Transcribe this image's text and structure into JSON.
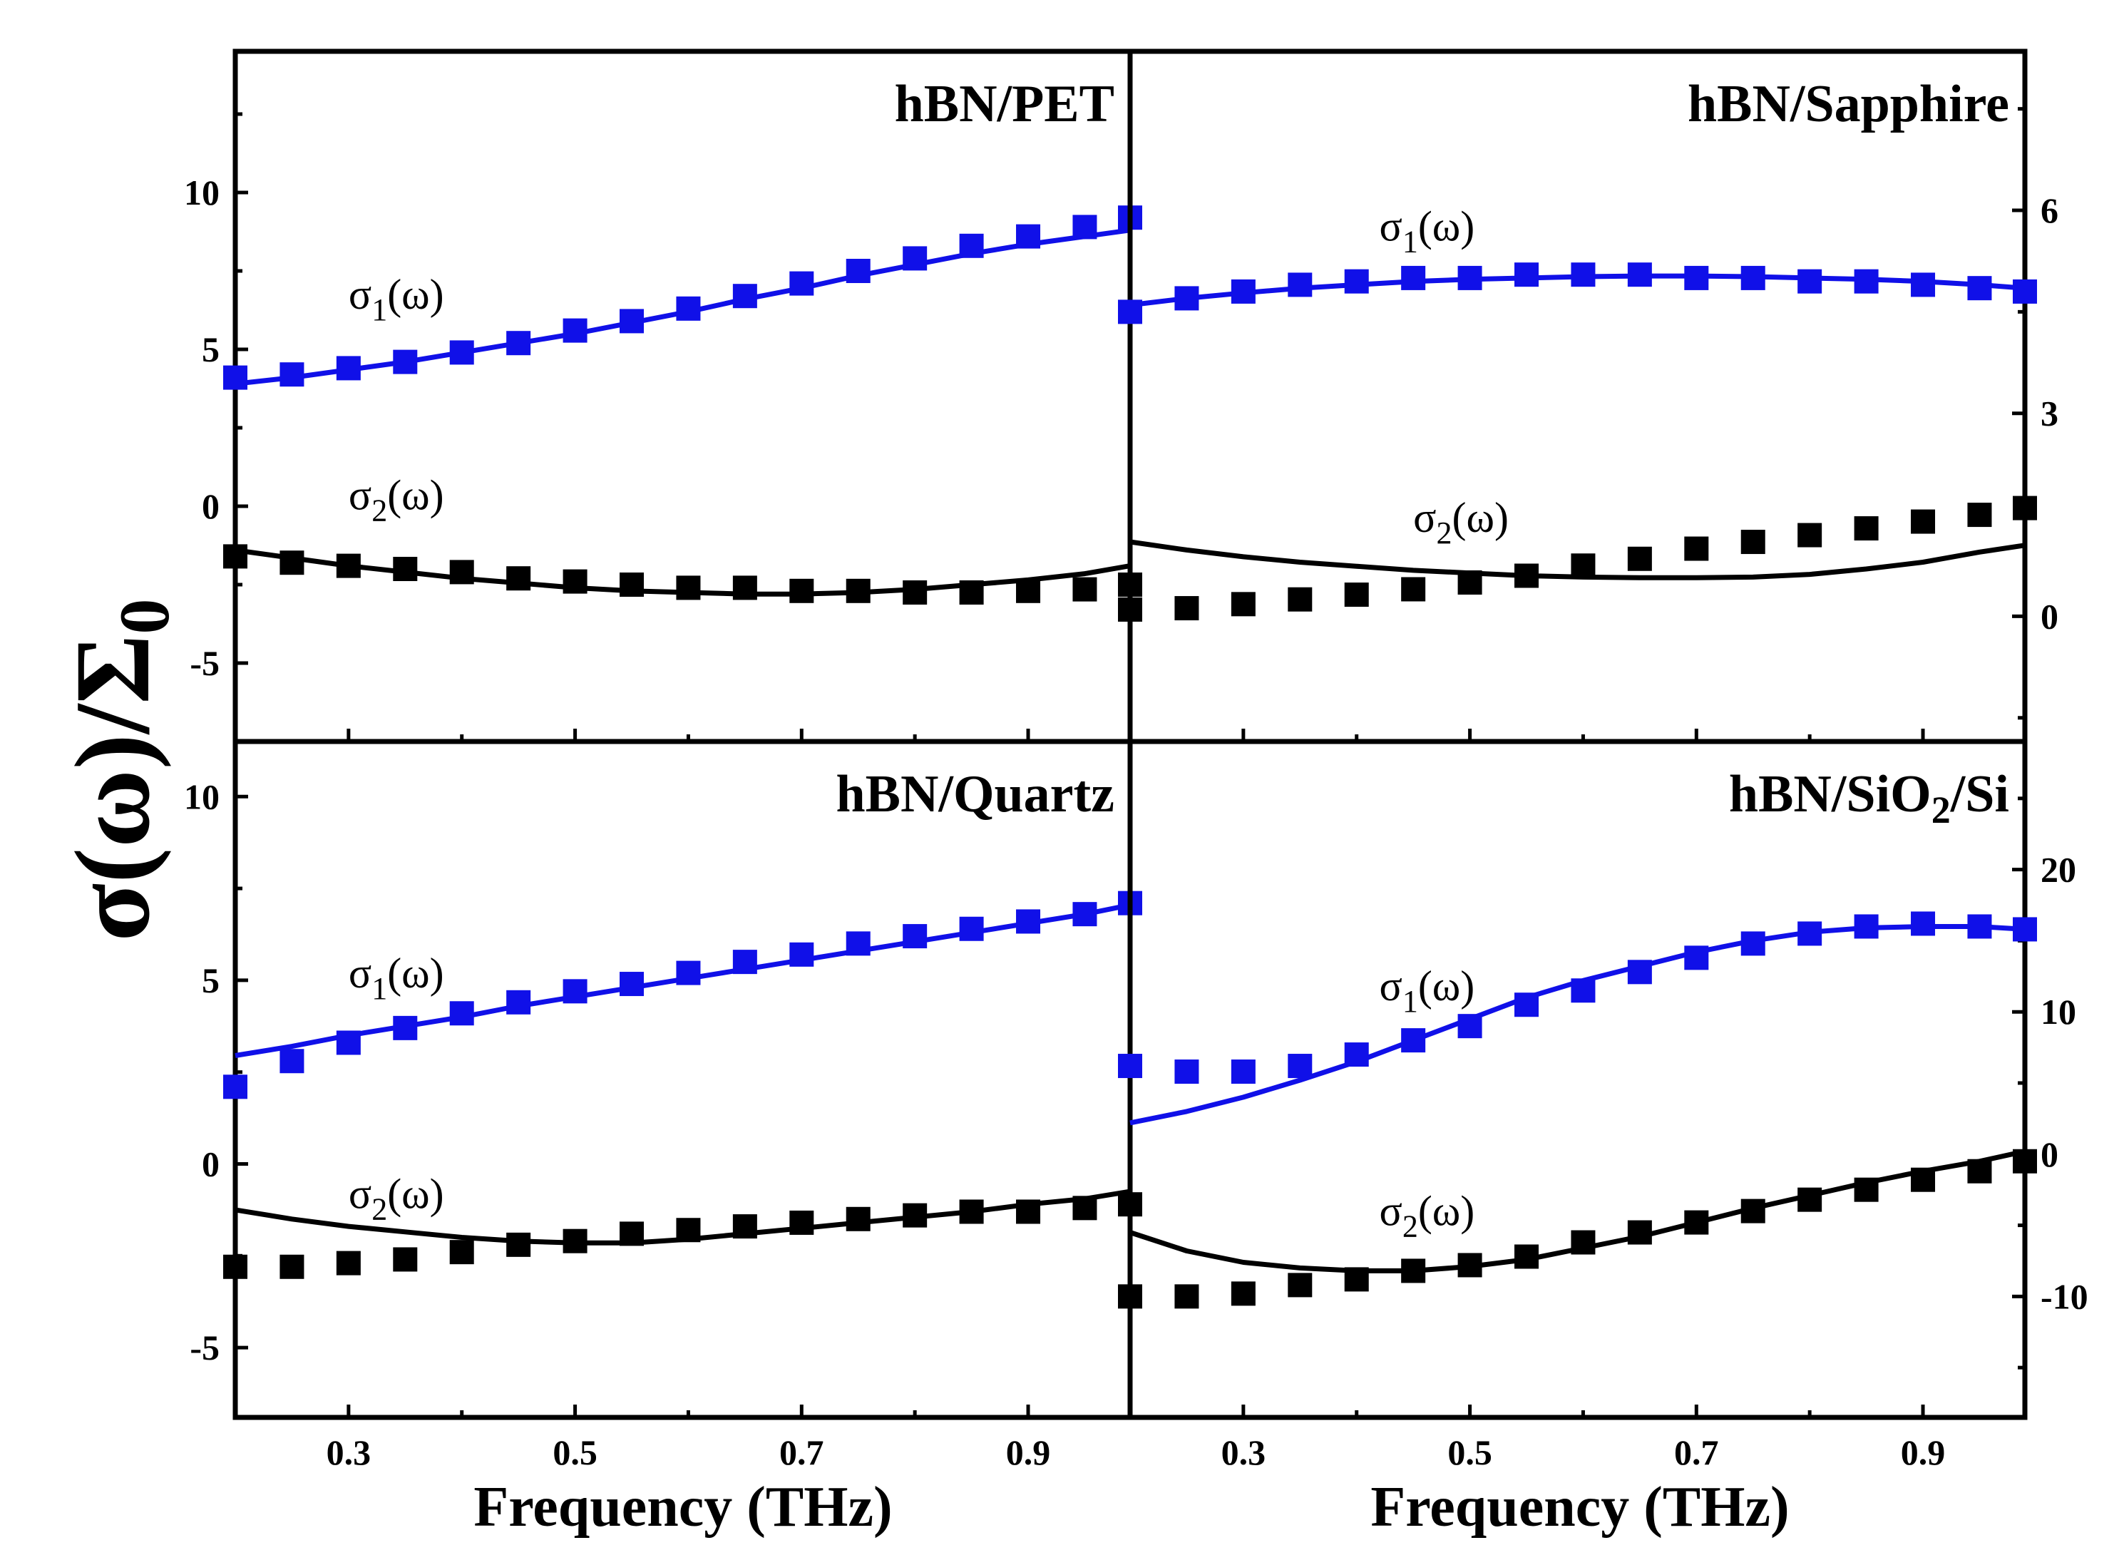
{
  "figure": {
    "ylabel": {
      "main": "σ(ω)/Σ",
      "sub": "0"
    },
    "xlabel": "Frequency (THz)"
  },
  "colors": {
    "sigma1": "#1010e8",
    "sigma2": "#000000",
    "axes": "#000000"
  },
  "chart_data": [
    {
      "type": "scatter",
      "title": "hBN/PET",
      "title_parts": [
        {
          "t": "hBN/PET"
        }
      ],
      "xlabel": "",
      "ylabel": "σ(ω)/Σ0",
      "xlim": [
        0.2,
        0.99
      ],
      "ylim": [
        -7.5,
        14.5
      ],
      "xticks": [],
      "yticks": [
        10,
        5,
        0,
        -5
      ],
      "y_axis_side": "left",
      "series": [
        {
          "name": "σ1(ω)",
          "label_parts": [
            {
              "t": "σ"
            },
            {
              "t": "1",
              "sub": true
            },
            {
              "t": "(ω)"
            }
          ],
          "label_at": [
            0.3,
            6.3
          ],
          "color": "#1010e8",
          "x": [
            0.2,
            0.25,
            0.3,
            0.35,
            0.4,
            0.45,
            0.5,
            0.55,
            0.6,
            0.65,
            0.7,
            0.75,
            0.8,
            0.85,
            0.9,
            0.95,
            0.99
          ],
          "points": [
            4.1,
            4.2,
            4.4,
            4.6,
            4.9,
            5.2,
            5.6,
            5.9,
            6.3,
            6.7,
            7.1,
            7.5,
            7.9,
            8.3,
            8.6,
            8.9,
            9.2
          ],
          "fit": [
            3.9,
            4.1,
            4.35,
            4.6,
            4.9,
            5.2,
            5.5,
            5.85,
            6.2,
            6.6,
            6.95,
            7.35,
            7.7,
            8.05,
            8.35,
            8.6,
            8.8
          ]
        },
        {
          "name": "σ2(ω)",
          "label_parts": [
            {
              "t": "σ"
            },
            {
              "t": "2",
              "sub": true
            },
            {
              "t": "(ω)"
            }
          ],
          "label_at": [
            0.3,
            -0.1
          ],
          "color": "#000000",
          "x": [
            0.2,
            0.25,
            0.3,
            0.35,
            0.4,
            0.45,
            0.5,
            0.55,
            0.6,
            0.65,
            0.7,
            0.75,
            0.8,
            0.85,
            0.9,
            0.95,
            0.99
          ],
          "points": [
            -1.6,
            -1.8,
            -1.9,
            -2.0,
            -2.1,
            -2.3,
            -2.4,
            -2.5,
            -2.6,
            -2.6,
            -2.7,
            -2.7,
            -2.75,
            -2.75,
            -2.7,
            -2.65,
            -2.5
          ],
          "fit": [
            -1.4,
            -1.65,
            -1.9,
            -2.1,
            -2.3,
            -2.45,
            -2.6,
            -2.7,
            -2.75,
            -2.8,
            -2.8,
            -2.75,
            -2.65,
            -2.5,
            -2.35,
            -2.15,
            -1.9
          ]
        }
      ]
    },
    {
      "type": "scatter",
      "title": "hBN/Sapphire",
      "title_parts": [
        {
          "t": "hBN/Sapphire"
        }
      ],
      "xlabel": "",
      "ylabel": "σ(ω)/Σ0",
      "xlim": [
        0.2,
        0.99
      ],
      "ylim": [
        -1.85,
        8.35
      ],
      "xticks": [],
      "yticks": [
        6,
        3,
        0
      ],
      "y_axis_side": "right",
      "series": [
        {
          "name": "σ1(ω)",
          "label_parts": [
            {
              "t": "σ"
            },
            {
              "t": "1",
              "sub": true
            },
            {
              "t": "(ω)"
            }
          ],
          "label_at": [
            0.42,
            5.55
          ],
          "color": "#1010e8",
          "x": [
            0.2,
            0.25,
            0.3,
            0.35,
            0.4,
            0.45,
            0.5,
            0.55,
            0.6,
            0.65,
            0.7,
            0.75,
            0.8,
            0.85,
            0.9,
            0.95,
            0.99
          ],
          "points": [
            4.5,
            4.7,
            4.8,
            4.9,
            4.95,
            5.0,
            5.0,
            5.05,
            5.05,
            5.05,
            5.0,
            5.0,
            4.95,
            4.95,
            4.9,
            4.85,
            4.8
          ],
          "fit": [
            4.6,
            4.7,
            4.78,
            4.85,
            4.9,
            4.95,
            4.98,
            5.0,
            5.02,
            5.03,
            5.03,
            5.02,
            5.0,
            4.98,
            4.95,
            4.9,
            4.85
          ]
        },
        {
          "name": "σ2(ω)",
          "label_parts": [
            {
              "t": "σ"
            },
            {
              "t": "2",
              "sub": true
            },
            {
              "t": "(ω)"
            }
          ],
          "label_at": [
            0.45,
            1.25
          ],
          "color": "#000000",
          "x": [
            0.2,
            0.25,
            0.3,
            0.35,
            0.4,
            0.45,
            0.5,
            0.55,
            0.6,
            0.65,
            0.7,
            0.75,
            0.8,
            0.85,
            0.9,
            0.95,
            0.99
          ],
          "points": [
            0.1,
            0.12,
            0.18,
            0.25,
            0.32,
            0.4,
            0.5,
            0.6,
            0.75,
            0.85,
            1.0,
            1.1,
            1.2,
            1.3,
            1.4,
            1.5,
            1.6
          ],
          "fit": [
            1.1,
            0.98,
            0.88,
            0.8,
            0.74,
            0.68,
            0.64,
            0.6,
            0.58,
            0.57,
            0.57,
            0.58,
            0.62,
            0.7,
            0.8,
            0.95,
            1.05
          ]
        }
      ]
    },
    {
      "type": "scatter",
      "title": "hBN/Quartz",
      "title_parts": [
        {
          "t": "hBN/Quartz"
        }
      ],
      "xlabel": "Frequency (THz)",
      "ylabel": "σ(ω)/Σ0",
      "xlim": [
        0.2,
        0.99
      ],
      "ylim": [
        -6.9,
        11.5
      ],
      "xticks": [
        0.3,
        0.5,
        0.7,
        0.9
      ],
      "yticks": [
        10,
        5,
        0,
        -5
      ],
      "y_axis_side": "left",
      "series": [
        {
          "name": "σ1(ω)",
          "label_parts": [
            {
              "t": "σ"
            },
            {
              "t": "1",
              "sub": true
            },
            {
              "t": "(ω)"
            }
          ],
          "label_at": [
            0.3,
            4.8
          ],
          "color": "#1010e8",
          "x": [
            0.2,
            0.25,
            0.3,
            0.35,
            0.4,
            0.45,
            0.5,
            0.55,
            0.6,
            0.65,
            0.7,
            0.75,
            0.8,
            0.85,
            0.9,
            0.95,
            0.99
          ],
          "points": [
            2.1,
            2.8,
            3.3,
            3.7,
            4.1,
            4.4,
            4.7,
            4.9,
            5.2,
            5.5,
            5.7,
            6.0,
            6.2,
            6.4,
            6.6,
            6.8,
            7.1
          ],
          "fit": [
            2.95,
            3.2,
            3.5,
            3.75,
            4.0,
            4.3,
            4.55,
            4.8,
            5.05,
            5.3,
            5.55,
            5.8,
            6.05,
            6.3,
            6.55,
            6.8,
            7.05
          ]
        },
        {
          "name": "σ2(ω)",
          "label_parts": [
            {
              "t": "σ"
            },
            {
              "t": "2",
              "sub": true
            },
            {
              "t": "(ω)"
            }
          ],
          "label_at": [
            0.3,
            -1.2
          ],
          "color": "#000000",
          "x": [
            0.2,
            0.25,
            0.3,
            0.35,
            0.4,
            0.45,
            0.5,
            0.55,
            0.6,
            0.65,
            0.7,
            0.75,
            0.8,
            0.85,
            0.9,
            0.95,
            0.99
          ],
          "points": [
            -2.8,
            -2.8,
            -2.7,
            -2.6,
            -2.4,
            -2.2,
            -2.1,
            -1.9,
            -1.8,
            -1.7,
            -1.6,
            -1.5,
            -1.4,
            -1.3,
            -1.3,
            -1.2,
            -1.1
          ],
          "fit": [
            -1.25,
            -1.5,
            -1.7,
            -1.85,
            -2.0,
            -2.1,
            -2.15,
            -2.15,
            -2.05,
            -1.9,
            -1.75,
            -1.6,
            -1.45,
            -1.3,
            -1.1,
            -0.95,
            -0.75
          ]
        }
      ]
    },
    {
      "type": "scatter",
      "title": "hBN/SiO2/Si",
      "title_parts": [
        {
          "t": "hBN/SiO"
        },
        {
          "t": "2",
          "sub": true
        },
        {
          "t": "/Si"
        }
      ],
      "xlabel": "Frequency (THz)",
      "ylabel": "σ(ω)/Σ0",
      "xlim": [
        0.2,
        0.99
      ],
      "ylim": [
        -18.5,
        29
      ],
      "xticks": [
        0.3,
        0.5,
        0.7,
        0.9
      ],
      "yticks": [
        20,
        10,
        0,
        -10
      ],
      "y_axis_side": "right",
      "series": [
        {
          "name": "σ1(ω)",
          "label_parts": [
            {
              "t": "σ"
            },
            {
              "t": "1",
              "sub": true
            },
            {
              "t": "(ω)"
            }
          ],
          "label_at": [
            0.42,
            10.8
          ],
          "color": "#1010e8",
          "x": [
            0.2,
            0.25,
            0.3,
            0.35,
            0.4,
            0.45,
            0.5,
            0.55,
            0.6,
            0.65,
            0.7,
            0.75,
            0.8,
            0.85,
            0.9,
            0.95,
            0.99
          ],
          "points": [
            6.2,
            5.8,
            5.8,
            6.2,
            7.0,
            8.0,
            9.0,
            10.5,
            11.5,
            12.8,
            13.8,
            14.8,
            15.5,
            16.0,
            16.2,
            16.0,
            15.8
          ],
          "fit": [
            2.2,
            3.0,
            4.0,
            5.2,
            6.5,
            8.0,
            9.5,
            11.0,
            12.2,
            13.2,
            14.2,
            15.0,
            15.6,
            15.9,
            16.0,
            16.0,
            15.8
          ]
        },
        {
          "name": "σ2(ω)",
          "label_parts": [
            {
              "t": "σ"
            },
            {
              "t": "2",
              "sub": true
            },
            {
              "t": "(ω)"
            }
          ],
          "label_at": [
            0.42,
            -5.0
          ],
          "color": "#000000",
          "x": [
            0.2,
            0.25,
            0.3,
            0.35,
            0.4,
            0.45,
            0.5,
            0.55,
            0.6,
            0.65,
            0.7,
            0.75,
            0.8,
            0.85,
            0.9,
            0.95,
            0.99
          ],
          "points": [
            -10.0,
            -10.0,
            -9.8,
            -9.2,
            -8.8,
            -8.2,
            -7.8,
            -7.2,
            -6.2,
            -5.5,
            -4.8,
            -4.0,
            -3.2,
            -2.5,
            -1.8,
            -1.2,
            -0.5
          ],
          "fit": [
            -5.5,
            -6.8,
            -7.6,
            -8.0,
            -8.2,
            -8.2,
            -7.9,
            -7.4,
            -6.6,
            -5.8,
            -4.8,
            -3.8,
            -2.9,
            -2.0,
            -1.2,
            -0.5,
            0.2
          ]
        }
      ]
    }
  ]
}
